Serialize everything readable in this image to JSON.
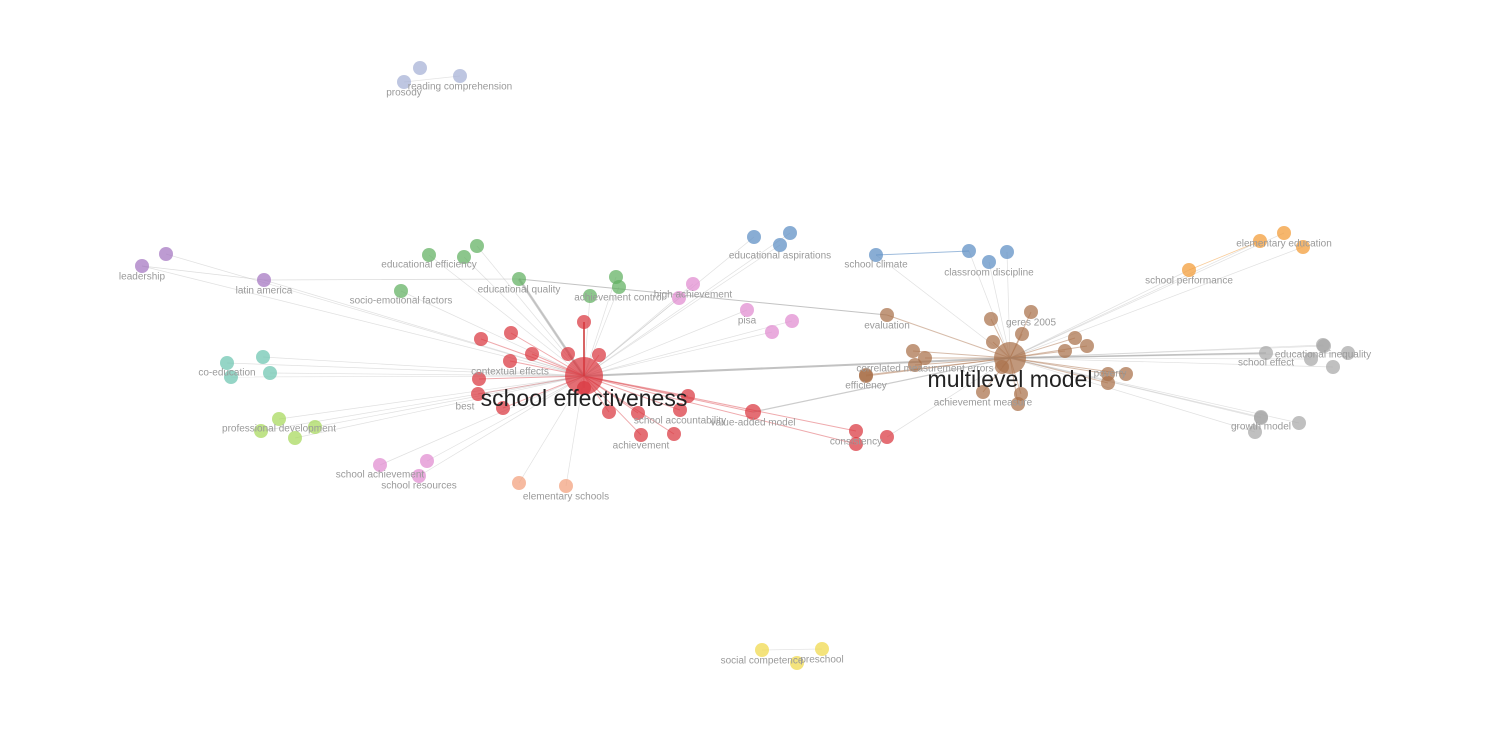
{
  "nodes": [
    {
      "label": "prosody"
    },
    {
      "label": "reading comprehension"
    },
    {
      "label": "leadership"
    },
    {
      "label": "latin america"
    },
    {
      "label": "educational efficiency"
    },
    {
      "label": "socio-emotional factors"
    },
    {
      "label": "educational quality"
    },
    {
      "label": "achievement control"
    },
    {
      "label": "high achievement"
    },
    {
      "label": "pisa"
    },
    {
      "label": "educational aspirations"
    },
    {
      "label": "school climate"
    },
    {
      "label": "classroom discipline"
    },
    {
      "label": "elementary education"
    },
    {
      "label": "school performance"
    },
    {
      "label": "evaluation"
    },
    {
      "label": "geres 2005"
    },
    {
      "label": "correlated measurement errors"
    },
    {
      "label": "efficiency"
    },
    {
      "label": "multilevel model"
    },
    {
      "label": "achievement measure"
    },
    {
      "label": "poverty"
    },
    {
      "label": "school effect"
    },
    {
      "label": "educational inequality"
    },
    {
      "label": "growth model"
    },
    {
      "label": "co-education"
    },
    {
      "label": "professional development"
    },
    {
      "label": "school achievement"
    },
    {
      "label": "school resources"
    },
    {
      "label": "elementary schools"
    },
    {
      "label": "contextual effects"
    },
    {
      "label": "school effectiveness"
    },
    {
      "label": "best"
    },
    {
      "label": "school accountability"
    },
    {
      "label": "achievement"
    },
    {
      "label": "value-added model"
    },
    {
      "label": "consistency"
    },
    {
      "label": "social competence"
    },
    {
      "label": "preschool"
    }
  ]
}
